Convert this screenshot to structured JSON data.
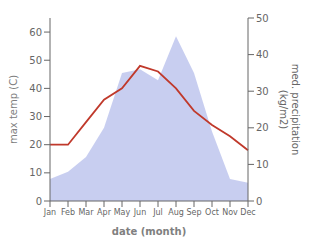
{
  "chart_data": {
    "type": "line",
    "xlabel": "date (month)",
    "ylabel": "max temp (C)",
    "y2label": "med. precipitation\n(kg/m2)",
    "categories": [
      "Jan",
      "Feb",
      "Mar",
      "Apr",
      "May",
      "Jun",
      "Jul",
      "Aug",
      "Sep",
      "Oct",
      "Nov",
      "Dec"
    ],
    "series": [
      {
        "type": "area",
        "axis": "y2",
        "color": "#aab4e8",
        "values": [
          6,
          8,
          12,
          20,
          35,
          36,
          33,
          45,
          35,
          19,
          6,
          5
        ]
      },
      {
        "type": "line",
        "color": "#c0392b",
        "values": [
          20,
          20,
          28,
          36,
          40,
          48,
          46,
          40,
          32,
          27,
          23,
          18
        ]
      }
    ],
    "ylim": [
      0,
      65
    ],
    "yticks": [
      0,
      10,
      20,
      30,
      40,
      50,
      60
    ],
    "y2lim": [
      0,
      50
    ],
    "y2ticks": [
      0,
      10,
      20,
      30,
      40,
      50
    ],
    "grid": false
  }
}
